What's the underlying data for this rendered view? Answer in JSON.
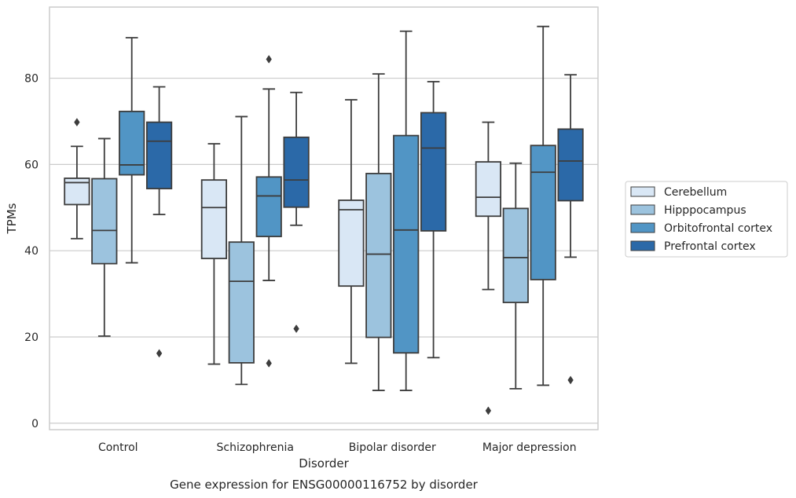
{
  "chart_data": {
    "type": "box",
    "title": "",
    "caption": "Gene expression for ENSG00000116752 by disorder",
    "xlabel": "Disorder",
    "ylabel": "TPMs",
    "ylim": [
      -1.5,
      96.5
    ],
    "yticks": [
      0,
      20,
      40,
      60,
      80
    ],
    "grid": "horizontal",
    "legend_position": "right",
    "categories": [
      "Control",
      "Schizophrenia",
      "Bipolar disorder",
      "Major depression"
    ],
    "series": [
      {
        "name": "Cerebellum",
        "color": "#d9e7f5",
        "boxes": [
          {
            "whislo": 42.8,
            "q1": 50.7,
            "med": 55.8,
            "q3": 56.8,
            "whishi": 64.2,
            "fliers": [
              69.8
            ]
          },
          {
            "whislo": 13.7,
            "q1": 38.2,
            "med": 50.0,
            "q3": 56.4,
            "whishi": 64.8,
            "fliers": []
          },
          {
            "whislo": 13.9,
            "q1": 31.8,
            "med": 49.5,
            "q3": 51.7,
            "whishi": 75.0,
            "fliers": []
          },
          {
            "whislo": 31.0,
            "q1": 48.0,
            "med": 52.4,
            "q3": 60.6,
            "whishi": 69.8,
            "fliers": [
              2.9
            ]
          }
        ]
      },
      {
        "name": "Hipppocampus",
        "color": "#9cc3de",
        "boxes": [
          {
            "whislo": 20.2,
            "q1": 37.0,
            "med": 44.7,
            "q3": 56.7,
            "whishi": 66.0,
            "fliers": []
          },
          {
            "whislo": 9.0,
            "q1": 14.0,
            "med": 32.9,
            "q3": 42.0,
            "whishi": 71.1,
            "fliers": []
          },
          {
            "whislo": 7.6,
            "q1": 19.9,
            "med": 39.2,
            "q3": 57.9,
            "whishi": 81.0,
            "fliers": []
          },
          {
            "whislo": 8.0,
            "q1": 28.0,
            "med": 38.4,
            "q3": 49.8,
            "whishi": 60.3,
            "fliers": []
          }
        ]
      },
      {
        "name": "Orbitofrontal cortex",
        "color": "#5195c5",
        "boxes": [
          {
            "whislo": 37.2,
            "q1": 57.6,
            "med": 59.9,
            "q3": 72.3,
            "whishi": 89.4,
            "fliers": []
          },
          {
            "whislo": 33.1,
            "q1": 43.3,
            "med": 52.7,
            "q3": 57.1,
            "whishi": 77.5,
            "fliers": [
              84.4,
              13.9
            ]
          },
          {
            "whislo": 7.6,
            "q1": 16.3,
            "med": 44.8,
            "q3": 66.7,
            "whishi": 90.9,
            "fliers": []
          },
          {
            "whislo": 8.8,
            "q1": 33.3,
            "med": 58.2,
            "q3": 64.4,
            "whishi": 92.0,
            "fliers": []
          }
        ]
      },
      {
        "name": "Prefrontal cortex",
        "color": "#2b69a8",
        "boxes": [
          {
            "whislo": 48.4,
            "q1": 54.4,
            "med": 65.4,
            "q3": 69.8,
            "whishi": 78.0,
            "fliers": [
              16.2
            ]
          },
          {
            "whislo": 45.9,
            "q1": 50.1,
            "med": 56.4,
            "q3": 66.3,
            "whishi": 76.7,
            "fliers": [
              21.9
            ]
          },
          {
            "whislo": 15.2,
            "q1": 44.6,
            "med": 63.8,
            "q3": 72.0,
            "whishi": 79.2,
            "fliers": []
          },
          {
            "whislo": 38.5,
            "q1": 51.6,
            "med": 60.8,
            "q3": 68.2,
            "whishi": 80.8,
            "fliers": [
              10.0
            ]
          }
        ]
      }
    ]
  }
}
